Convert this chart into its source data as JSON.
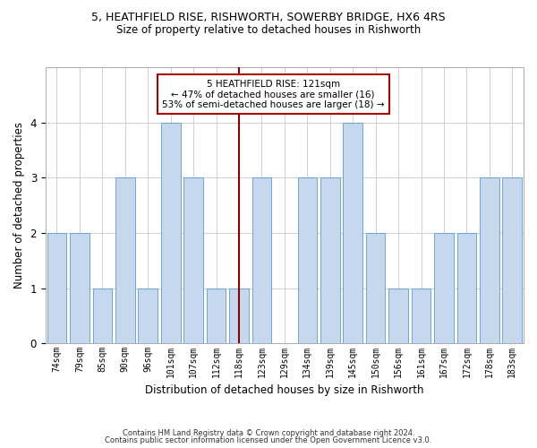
{
  "title": "5, HEATHFIELD RISE, RISHWORTH, SOWERBY BRIDGE, HX6 4RS",
  "subtitle": "Size of property relative to detached houses in Rishworth",
  "xlabel": "Distribution of detached houses by size in Rishworth",
  "ylabel": "Number of detached properties",
  "categories": [
    "74sqm",
    "79sqm",
    "85sqm",
    "90sqm",
    "96sqm",
    "101sqm",
    "107sqm",
    "112sqm",
    "118sqm",
    "123sqm",
    "129sqm",
    "134sqm",
    "139sqm",
    "145sqm",
    "150sqm",
    "156sqm",
    "161sqm",
    "167sqm",
    "172sqm",
    "178sqm",
    "183sqm"
  ],
  "values": [
    2,
    2,
    1,
    3,
    1,
    4,
    3,
    1,
    1,
    3,
    0,
    3,
    3,
    4,
    2,
    1,
    1,
    2,
    2,
    3,
    3
  ],
  "bar_color": "#c5d8ed",
  "bar_edge_color": "#5b9bd5",
  "highlight_index": 8,
  "highlight_line_color": "#8b0000",
  "ylim": [
    0,
    5
  ],
  "yticks": [
    0,
    1,
    2,
    3,
    4
  ],
  "annotation_text": "5 HEATHFIELD RISE: 121sqm\n← 47% of detached houses are smaller (16)\n53% of semi-detached houses are larger (18) →",
  "annotation_box_color": "#aa0000",
  "footer1": "Contains HM Land Registry data © Crown copyright and database right 2024.",
  "footer2": "Contains public sector information licensed under the Open Government Licence v3.0.",
  "background_color": "#ffffff",
  "grid_color": "#d0d0d0"
}
